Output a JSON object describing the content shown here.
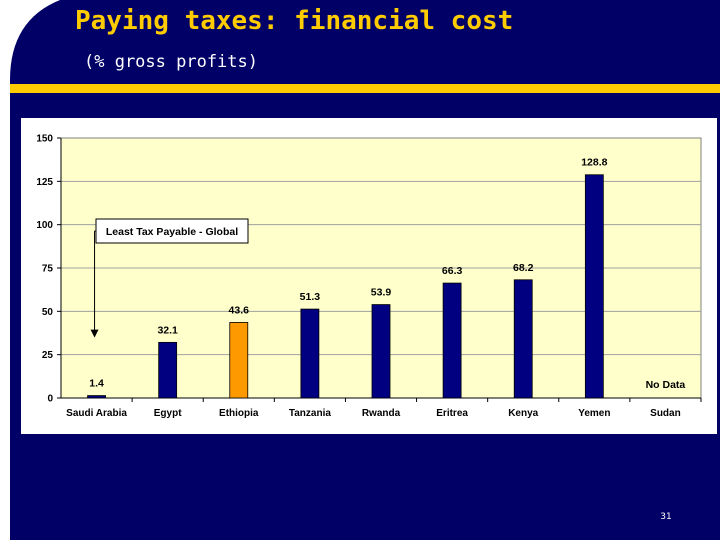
{
  "slide": {
    "title": "Paying taxes:  financial cost",
    "subtitle": "(% gross profits)",
    "page_number": "31",
    "colors": {
      "background": "#000066",
      "title": "#FFCC00",
      "gold_bar": "#FFCC00",
      "plot_area": "#FFFFCC"
    }
  },
  "chart_data": {
    "type": "bar",
    "title": "",
    "xlabel": "",
    "ylabel": "",
    "categories": [
      "Saudi Arabia",
      "Egypt",
      "Ethiopia",
      "Tanzania",
      "Rwanda",
      "Eritrea",
      "Kenya",
      "Yemen",
      "Sudan"
    ],
    "values": [
      1.4,
      32.1,
      43.6,
      51.3,
      53.9,
      66.3,
      68.2,
      128.8,
      null
    ],
    "data_labels": [
      "1.4",
      "32.1",
      "43.6",
      "51.3",
      "53.9",
      "66.3",
      "68.2",
      "128.8",
      "No Data"
    ],
    "bar_colors": [
      "#000080",
      "#000080",
      "#FF9900",
      "#000080",
      "#000080",
      "#000080",
      "#000080",
      "#000080",
      "#000080"
    ],
    "ylim": [
      0,
      150
    ],
    "yticks": [
      0,
      25,
      50,
      75,
      100,
      125,
      150
    ],
    "grid": true,
    "annotation": {
      "text": "Least Tax Payable - Global",
      "target_category": "Saudi Arabia"
    }
  }
}
